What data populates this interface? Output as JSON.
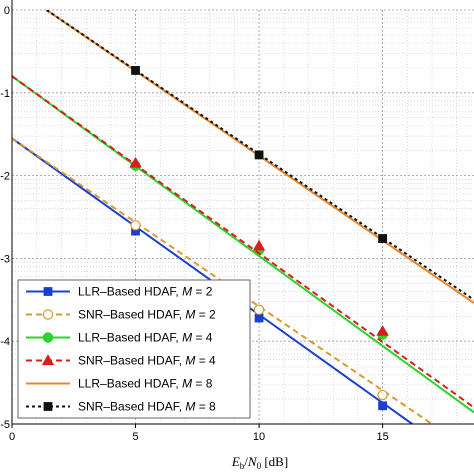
{
  "chart_data": {
    "type": "line",
    "xlabel": "E_b/N_0 [dB]",
    "xlabel_parts": {
      "e": "E",
      "b": "b",
      "slash": "/",
      "n": "N",
      "zero": "0",
      "unit": " [dB]"
    },
    "ylabel": "",
    "xlim": [
      0,
      18.7
    ],
    "ylim_exponent": [
      -5,
      0
    ],
    "y_scale": "log",
    "grid": true,
    "legend_position": "bottom-left",
    "x_ticks": [
      "0",
      "5",
      "10",
      "15"
    ],
    "x_tick_values": [
      0,
      5,
      10,
      15
    ],
    "y_ticks": [
      "0",
      "-1",
      "-2",
      "-3",
      "-4",
      "-5"
    ],
    "y_tick_values": [
      0,
      -1,
      -2,
      -3,
      -4,
      -5
    ],
    "series": [
      {
        "name": "LLR–Based HDAF, M = 2",
        "label_text": "LLR–Based HDAF, ",
        "label_var": "M",
        "label_val": " = 2",
        "color": "#1a3fd1",
        "dash": "solid",
        "marker": "square",
        "filled": true,
        "line": [
          [
            0,
            -1.55
          ],
          [
            16.2,
            -5.0
          ]
        ],
        "markers": [
          [
            5,
            -2.67
          ],
          [
            10,
            -3.72
          ],
          [
            15,
            -4.78
          ]
        ]
      },
      {
        "name": "SNR–Based HDAF, M = 2",
        "label_text": "SNR–Based HDAF, ",
        "label_var": "M",
        "label_val": " = 2",
        "color": "#d69a2d",
        "dash": "dashed",
        "marker": "circle",
        "filled": false,
        "line": [
          [
            0,
            -1.55
          ],
          [
            17.0,
            -5.0
          ]
        ],
        "markers": [
          [
            5,
            -2.6
          ],
          [
            10,
            -3.62
          ],
          [
            15,
            -4.65
          ]
        ]
      },
      {
        "name": "LLR–Based HDAF, M = 4",
        "label_text": "LLR–Based HDAF, ",
        "label_var": "M",
        "label_val": " = 4",
        "color": "#2bd42b",
        "dash": "solid",
        "marker": "circle",
        "filled": true,
        "line": [
          [
            0,
            -0.8
          ],
          [
            18.7,
            -4.86
          ]
        ],
        "markers": [
          [
            5,
            -1.88
          ],
          [
            10,
            -2.9
          ],
          [
            15,
            -3.92
          ]
        ]
      },
      {
        "name": "SNR–Based HDAF, M = 4",
        "label_text": "SNR–Based HDAF, ",
        "label_var": "M",
        "label_val": " = 4",
        "color": "#d91e1e",
        "dash": "dashed",
        "marker": "triangle",
        "filled": true,
        "line": [
          [
            0,
            -0.8
          ],
          [
            18.7,
            -4.8
          ]
        ],
        "markers": [
          [
            5,
            -1.85
          ],
          [
            10,
            -2.85
          ],
          [
            15,
            -3.88
          ]
        ]
      },
      {
        "name": "LLR–Based HDAF, M = 8",
        "label_text": "LLR–Based HDAF, ",
        "label_var": "M",
        "label_val": " = 8",
        "color": "#e8842a",
        "dash": "solid",
        "marker": "none",
        "filled": false,
        "line": [
          [
            1.4,
            0.0
          ],
          [
            18.7,
            -3.54
          ]
        ],
        "markers": []
      },
      {
        "name": "SNR–Based HDAF, M = 8",
        "label_text": "SNR–Based HDAF, ",
        "label_var": "M",
        "label_val": " = 8",
        "color": "#111111",
        "dash": "dotted",
        "marker": "square",
        "filled": true,
        "line": [
          [
            1.4,
            0.0
          ],
          [
            18.7,
            -3.5
          ]
        ],
        "markers": [
          [
            5,
            -0.73
          ],
          [
            10,
            -1.75
          ],
          [
            15,
            -2.76
          ]
        ]
      }
    ]
  }
}
